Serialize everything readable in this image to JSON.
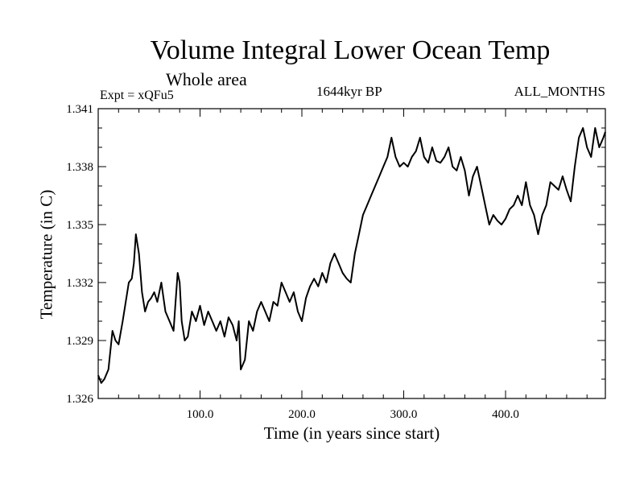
{
  "header": {
    "title": "Volume Integral Lower Ocean Temp",
    "subtitle": "Whole area",
    "expt": "Expt = xQFu5",
    "era": "1644kyr BP",
    "months": "ALL_MONTHS"
  },
  "chart_data": {
    "type": "line",
    "title": "Volume Integral Lower Ocean Temp",
    "subtitle": "Whole area",
    "xlabel": "Time (in years since start)",
    "ylabel": "Temperature (in C)",
    "xlim": [
      0,
      498
    ],
    "ylim": [
      1.326,
      1.341
    ],
    "xticks": [
      100,
      200,
      300,
      400
    ],
    "xtick_labels": [
      "100.0",
      "200.0",
      "300.0",
      "400.0"
    ],
    "yticks": [
      1.326,
      1.329,
      1.332,
      1.335,
      1.338,
      1.341
    ],
    "ytick_labels": [
      "1.326",
      "1.329",
      "1.332",
      "1.335",
      "1.338",
      "1.341"
    ],
    "series": [
      {
        "name": "Temperature",
        "x": [
          0,
          3,
          6,
          10,
          14,
          17,
          20,
          24,
          27,
          30,
          33,
          35,
          37,
          40,
          43,
          46,
          49,
          52,
          55,
          58,
          62,
          66,
          70,
          74,
          76,
          78,
          80,
          82,
          85,
          88,
          92,
          96,
          100,
          104,
          108,
          112,
          116,
          120,
          124,
          128,
          132,
          136,
          138,
          140,
          144,
          148,
          152,
          156,
          160,
          164,
          168,
          172,
          176,
          180,
          184,
          188,
          192,
          196,
          200,
          204,
          208,
          212,
          216,
          220,
          224,
          228,
          232,
          236,
          240,
          244,
          248,
          252,
          256,
          260,
          264,
          268,
          272,
          276,
          280,
          284,
          288,
          292,
          296,
          300,
          304,
          308,
          312,
          316,
          320,
          324,
          328,
          332,
          336,
          340,
          344,
          348,
          352,
          356,
          360,
          364,
          368,
          372,
          376,
          380,
          384,
          388,
          392,
          396,
          400,
          404,
          408,
          412,
          416,
          420,
          424,
          428,
          432,
          436,
          440,
          444,
          448,
          452,
          456,
          460,
          464,
          468,
          472,
          476,
          480,
          484,
          488,
          492,
          496,
          498
        ],
        "y": [
          1.3272,
          1.3268,
          1.327,
          1.3275,
          1.3295,
          1.329,
          1.3288,
          1.33,
          1.331,
          1.332,
          1.3322,
          1.333,
          1.3345,
          1.3335,
          1.3315,
          1.3305,
          1.331,
          1.3312,
          1.3315,
          1.331,
          1.332,
          1.3305,
          1.33,
          1.3295,
          1.331,
          1.3325,
          1.332,
          1.33,
          1.329,
          1.3292,
          1.3305,
          1.33,
          1.3308,
          1.3298,
          1.3305,
          1.33,
          1.3295,
          1.33,
          1.3292,
          1.3302,
          1.3298,
          1.329,
          1.33,
          1.3275,
          1.328,
          1.33,
          1.3295,
          1.3305,
          1.331,
          1.3305,
          1.33,
          1.331,
          1.3308,
          1.332,
          1.3315,
          1.331,
          1.3315,
          1.3305,
          1.33,
          1.3312,
          1.3318,
          1.3322,
          1.3318,
          1.3325,
          1.332,
          1.333,
          1.3335,
          1.333,
          1.3325,
          1.3322,
          1.332,
          1.3335,
          1.3345,
          1.3355,
          1.336,
          1.3365,
          1.337,
          1.3375,
          1.338,
          1.3385,
          1.3395,
          1.3385,
          1.338,
          1.3382,
          1.338,
          1.3385,
          1.3388,
          1.3395,
          1.3385,
          1.3382,
          1.339,
          1.3383,
          1.3382,
          1.3385,
          1.339,
          1.338,
          1.3378,
          1.3385,
          1.3378,
          1.3365,
          1.3375,
          1.338,
          1.337,
          1.336,
          1.335,
          1.3355,
          1.3352,
          1.335,
          1.3353,
          1.3358,
          1.336,
          1.3365,
          1.336,
          1.3372,
          1.336,
          1.3355,
          1.3345,
          1.3355,
          1.336,
          1.3372,
          1.337,
          1.3368,
          1.3375,
          1.3368,
          1.3362,
          1.338,
          1.3395,
          1.34,
          1.339,
          1.3385,
          1.34,
          1.339,
          1.3395,
          1.3398
        ]
      }
    ]
  }
}
